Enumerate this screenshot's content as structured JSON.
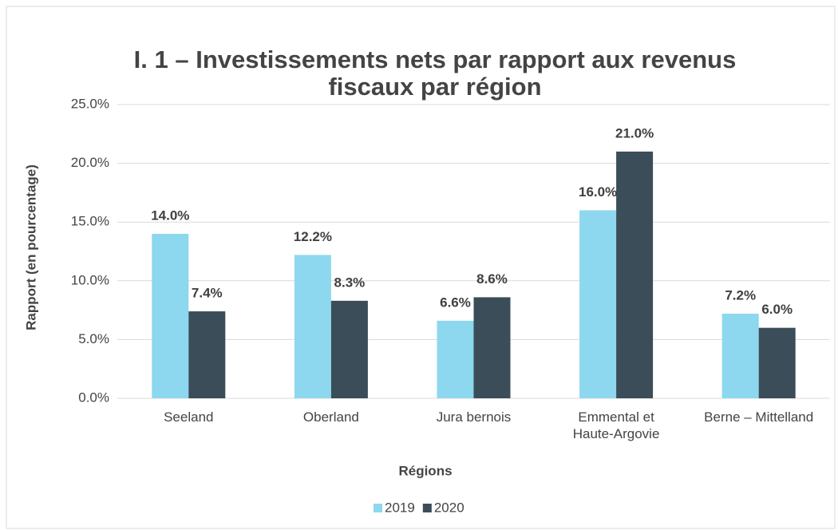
{
  "chart_data": {
    "type": "bar",
    "title": "I. 1 – Investissements nets par rapport aux revenus fiscaux par région",
    "x_label": "Régions",
    "y_label": "Rapport (en pourcentage)",
    "categories": [
      "Seeland",
      "Oberland",
      "Jura bernois",
      "Emmental et Haute-Argovie",
      "Berne – Mittelland"
    ],
    "series": [
      {
        "name": "2019",
        "color": "#8dd7ef",
        "values": [
          14.0,
          12.2,
          6.6,
          16.0,
          7.2
        ],
        "value_labels": [
          "14.0%",
          "12.2%",
          "6.6%",
          "16.0%",
          "7.2%"
        ]
      },
      {
        "name": "2020",
        "color": "#3a4d58",
        "values": [
          7.4,
          8.3,
          8.6,
          21.0,
          6.0
        ],
        "value_labels": [
          "7.4%",
          "8.3%",
          "8.6%",
          "21.0%",
          "6.0%"
        ]
      }
    ],
    "ylim": [
      0,
      25
    ],
    "yticks": [
      {
        "value": 0,
        "label": "0.0%"
      },
      {
        "value": 5,
        "label": "5.0%"
      },
      {
        "value": 10,
        "label": "10.0%"
      },
      {
        "value": 15,
        "label": "15.0%"
      },
      {
        "value": 20,
        "label": "20.0%"
      },
      {
        "value": 25,
        "label": "25.0%"
      }
    ],
    "grid": true,
    "legend": "bottom"
  }
}
